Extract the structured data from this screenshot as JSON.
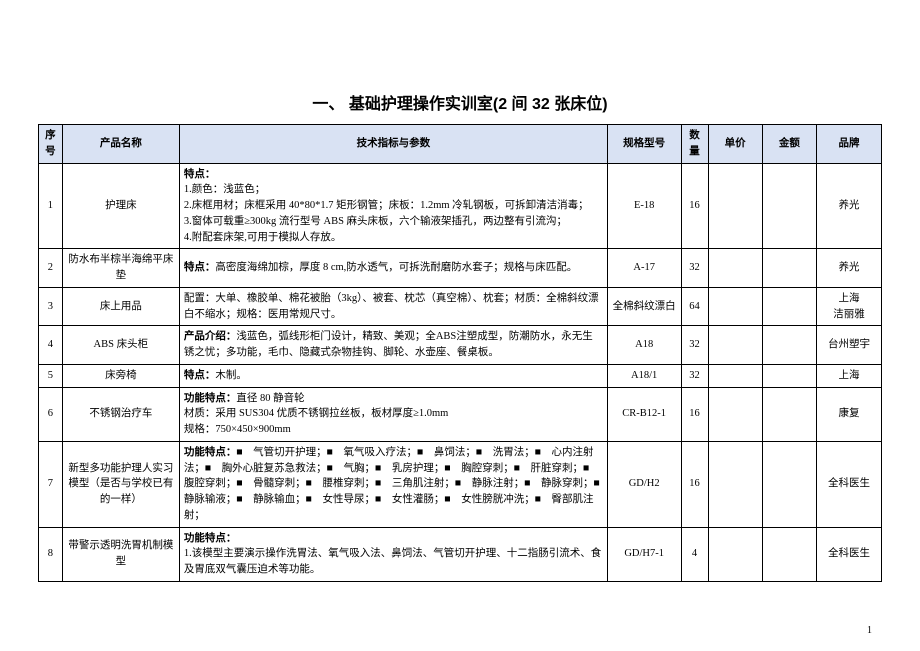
{
  "title": "一、 基础护理操作实训室(2 间 32 张床位)",
  "pageNumber": "1",
  "headers": {
    "seq": "序号",
    "name": "产品名称",
    "spec": "技术指标与参数",
    "model": "规格型号",
    "qty": "数量",
    "price": "单价",
    "amount": "金额",
    "brand": "品牌"
  },
  "rows": [
    {
      "seq": "1",
      "name": "护理床",
      "spec": "特点：\n1.颜色：浅蓝色；\n2.床框用材；床框采用 40*80*1.7 矩形钢管；床板：1.2mm 冷轧钢板，可拆卸清洁消毒；\n3.窗体可载重≥300kg 流行型号 ABS 麻头床板，六个输液架插孔，两边整有引流沟；\n4.附配套床架,可用于模拟人存放。",
      "model": "E-18",
      "qty": "16",
      "price": "",
      "amount": "",
      "brand": "养光"
    },
    {
      "seq": "2",
      "name": "防水布半棕半海绵平床垫",
      "spec": "特点：高密度海绵加棕，厚度 8 cm,防水透气，可拆洗耐磨防水套子；规格与床匹配。",
      "model": "A-17",
      "qty": "32",
      "price": "",
      "amount": "",
      "brand": "养光"
    },
    {
      "seq": "3",
      "name": "床上用品",
      "spec": "配置：大单、橡胶单、棉花被胎（3kg）、被套、枕芯（真空棉）、枕套；材质：全棉斜纹漂白不缩水；规格：医用常规尺寸。",
      "model": "全棉斜纹漂白",
      "qty": "64",
      "price": "",
      "amount": "",
      "brand": "上海\n洁丽雅"
    },
    {
      "seq": "4",
      "name": "ABS 床头柜",
      "spec": "产品介绍：浅蓝色，弧线形柜门设计，精致、美观；全ABS注塑成型，防潮防水，永无生锈之忧；多功能，毛巾、隐藏式杂物挂钩、脚轮、水壶座、餐桌板。",
      "model": "A18",
      "qty": "32",
      "price": "",
      "amount": "",
      "brand": "台州塑宇"
    },
    {
      "seq": "5",
      "name": "床旁椅",
      "spec": "特点：木制。",
      "model": "A18/1",
      "qty": "32",
      "price": "",
      "amount": "",
      "brand": "上海"
    },
    {
      "seq": "6",
      "name": "不锈钢治疗车",
      "spec": "功能特点：直径 80 静音轮\n材质：采用 SUS304 优质不锈钢拉丝板，板材厚度≥1.0mm\n规格：750×450×900mm",
      "model": "CR-B12-1",
      "qty": "16",
      "price": "",
      "amount": "",
      "brand": "康复"
    },
    {
      "seq": "7",
      "name": "新型多功能护理人实习模型（是否与学校已有的一样）",
      "spec": "功能特点：■　气管切开护理；■　氧气吸入疗法；■　鼻饲法；■　洗胃法；■　心内注射法；■　胸外心脏复苏急救法；■　气胸；■　乳房护理；■　胸腔穿刺；■　肝脏穿刺；■　腹腔穿刺；■　骨髓穿刺；■　腰椎穿刺；■　三角肌注射；■　静脉注射；■　静脉穿刺；■　静脉输液；■　静脉输血；■　女性导尿；■　女性灌肠；■　女性膀胱冲洗；■　臀部肌注射；",
      "model": "GD/H2",
      "qty": "16",
      "price": "",
      "amount": "",
      "brand": "全科医生"
    },
    {
      "seq": "8",
      "name": "带警示透明洗胃机制模型",
      "spec": "功能特点：\n1.该模型主要演示操作洗胃法、氧气吸入法、鼻饲法、气管切开护理、十二指肠引流术、食及胃底双气囊压迫术等功能。",
      "model": "GD/H7-1",
      "qty": "4",
      "price": "",
      "amount": "",
      "brand": "全科医生"
    }
  ]
}
